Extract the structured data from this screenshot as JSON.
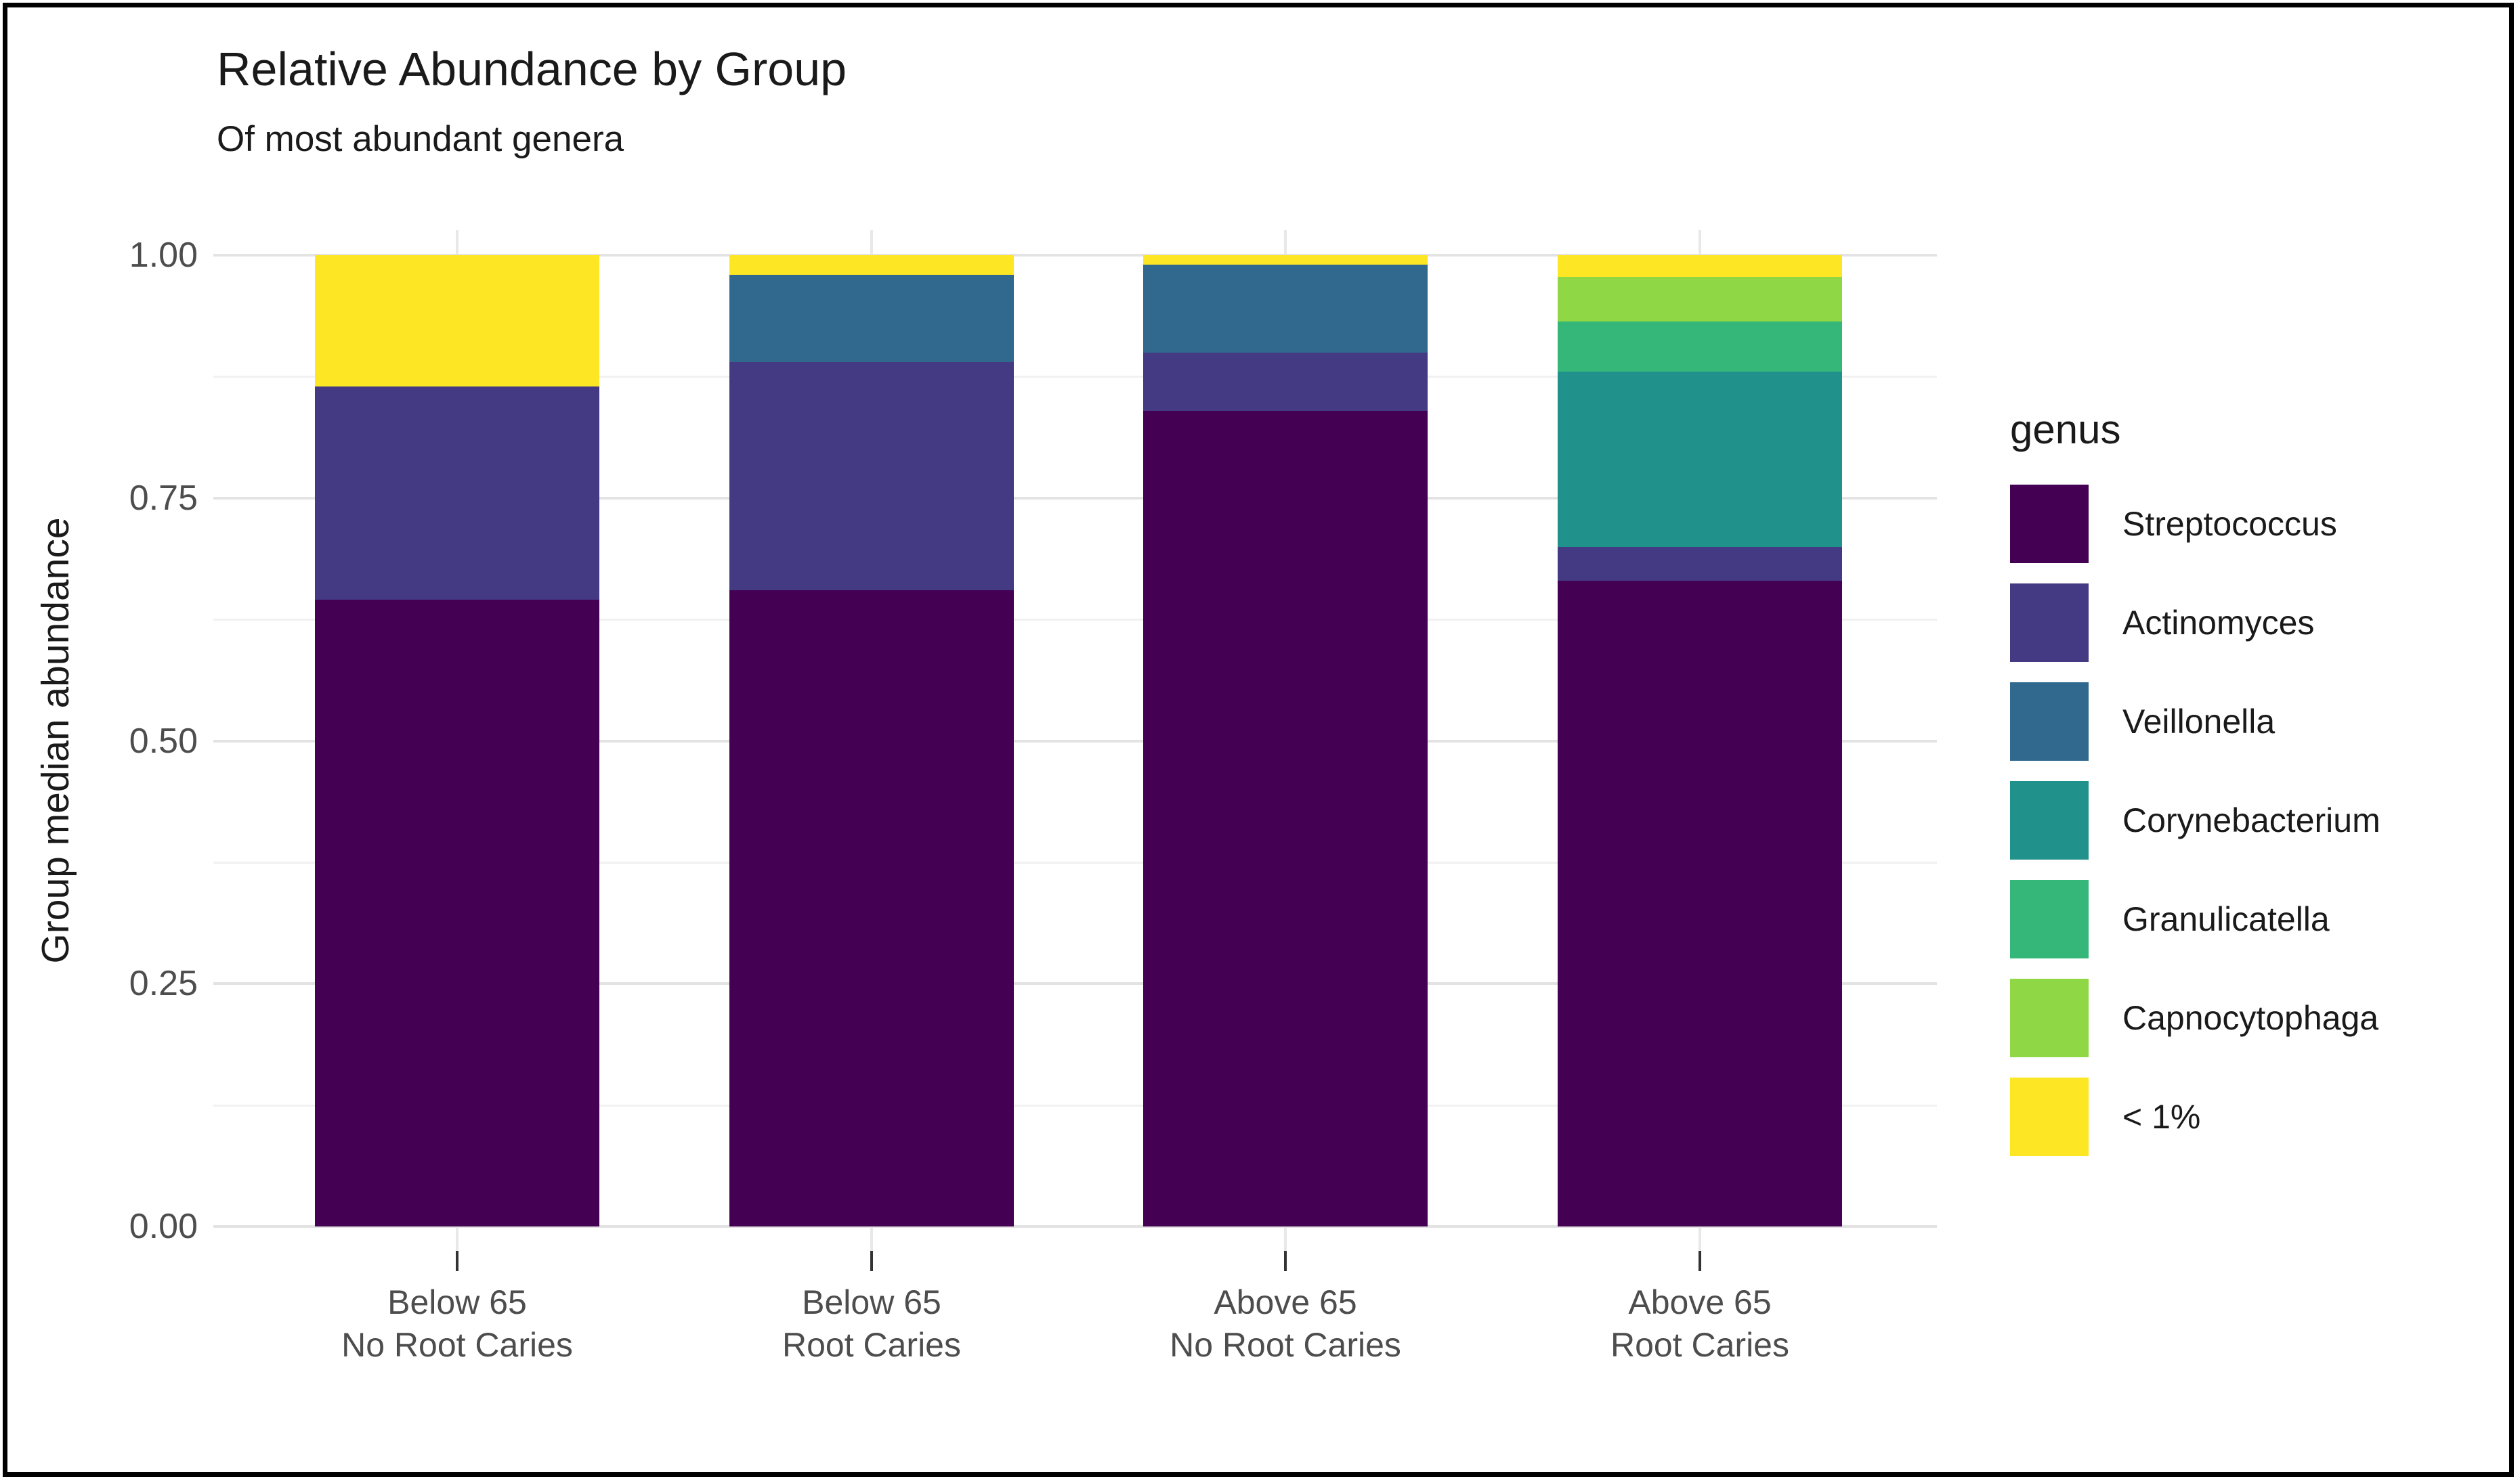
{
  "title": "Relative Abundance by Group",
  "subtitle": "Of most abundant genera",
  "y_axis_title": "Group median abundance",
  "legend": {
    "title": "genus",
    "items": [
      {
        "label": "Streptococcus",
        "color": "#440154"
      },
      {
        "label": "Actinomyces",
        "color": "#443A83"
      },
      {
        "label": "Veillonella",
        "color": "#31688E"
      },
      {
        "label": "Corynebacterium",
        "color": "#21918C"
      },
      {
        "label": "Granulicatella",
        "color": "#35B779"
      },
      {
        "label": "Capnocytophaga",
        "color": "#8FD744"
      },
      {
        "label": "< 1%",
        "color": "#FDE725"
      }
    ]
  },
  "chart_data": {
    "type": "bar",
    "stacked": true,
    "title": "Relative Abundance by Group",
    "subtitle": "Of most abundant genera",
    "xlabel": "",
    "ylabel": "Group median abundance",
    "ylim": [
      0,
      1
    ],
    "grid": true,
    "legend_position": "right",
    "legend_title": "genus",
    "categories": [
      [
        "Below 65",
        "No Root Caries"
      ],
      [
        "Below 65",
        "Root Caries"
      ],
      [
        "Above 65",
        "No Root Caries"
      ],
      [
        "Above 65",
        "Root Caries"
      ]
    ],
    "y_ticks": [
      {
        "label": "0.00",
        "value": 0.0
      },
      {
        "label": "0.25",
        "value": 0.25
      },
      {
        "label": "0.50",
        "value": 0.5
      },
      {
        "label": "0.75",
        "value": 0.75
      },
      {
        "label": "1.00",
        "value": 1.0
      }
    ],
    "y_minor_gridlines": [
      0.125,
      0.375,
      0.625,
      0.875
    ],
    "series": [
      {
        "name": "Streptococcus",
        "color": "#440154",
        "values": [
          0.645,
          0.655,
          0.84,
          0.665
        ]
      },
      {
        "name": "Actinomyces",
        "color": "#443A83",
        "values": [
          0.22,
          0.235,
          0.06,
          0.035
        ]
      },
      {
        "name": "Veillonella",
        "color": "#31688E",
        "values": [
          0.0,
          0.09,
          0.09,
          0.0
        ]
      },
      {
        "name": "Corynebacterium",
        "color": "#21918C",
        "values": [
          0.0,
          0.0,
          0.0,
          0.18
        ]
      },
      {
        "name": "Granulicatella",
        "color": "#35B779",
        "values": [
          0.0,
          0.0,
          0.0,
          0.052
        ]
      },
      {
        "name": "Capnocytophaga",
        "color": "#8FD744",
        "values": [
          0.0,
          0.0,
          0.0,
          0.046
        ]
      },
      {
        "name": "< 1%",
        "color": "#FDE725",
        "values": [
          0.135,
          0.02,
          0.01,
          0.022
        ]
      }
    ]
  }
}
